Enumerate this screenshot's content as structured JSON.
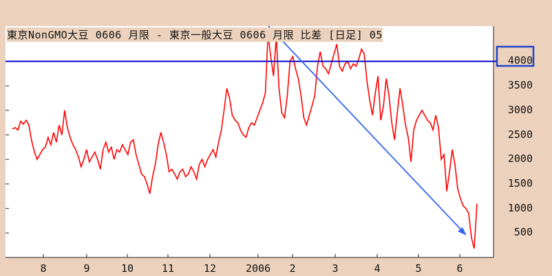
{
  "chart_data": {
    "type": "line",
    "title": "東京NonGMO大豆 0606 月限 - 東京一般大豆 0606 月限 比差 [日足] 05",
    "y_ticks": [
      "4000",
      "3500",
      "3000",
      "2500",
      "2000",
      "1500",
      "1000",
      "500"
    ],
    "y_tick_values": [
      4000,
      3500,
      3000,
      2500,
      2000,
      1500,
      1000,
      500
    ],
    "x_ticks": [
      "8",
      "9",
      "10",
      "11",
      "12",
      "2006",
      "2",
      "3",
      "4",
      "5",
      "6"
    ],
    "ylim": [
      0,
      4720
    ],
    "horizontal_line": 4000,
    "colors": {
      "series": "#ff0000",
      "reference_line": "#0000cc",
      "arrow": "#3366ee",
      "highlight_box": "#2244cc",
      "background": "#ecd2bd",
      "plot_bg": "#ffffff"
    },
    "series": [
      {
        "values": [
          2620,
          2650,
          2600,
          2780,
          2720,
          2800,
          2700,
          2380,
          2150,
          2000,
          2100,
          2200,
          2250,
          2450,
          2300,
          2550,
          2350,
          2700,
          2500,
          3000,
          2650,
          2450,
          2300,
          2200,
          2050,
          1850,
          2000,
          2200,
          1950,
          2050,
          2150,
          2000,
          1800,
          2200,
          2350,
          2150,
          2250,
          2000,
          2200,
          2150,
          2300,
          2200,
          2100,
          2350,
          2400,
          2100,
          1900,
          1700,
          1650,
          1500,
          1300,
          1650,
          1900,
          2300,
          2550,
          2350,
          2100,
          1750,
          1800,
          1700,
          1600,
          1750,
          1800,
          1650,
          1700,
          1850,
          1750,
          1600,
          1900,
          2000,
          1850,
          2000,
          2100,
          2200,
          2050,
          2350,
          2600,
          3000,
          3450,
          3250,
          2900,
          2800,
          2750,
          2600,
          2500,
          2450,
          2650,
          2750,
          2700,
          2850,
          3000,
          3150,
          3350,
          4550,
          4100,
          3700,
          4500,
          3450,
          2950,
          2850,
          3300,
          4000,
          4100,
          3850,
          3650,
          3300,
          2850,
          2700,
          2900,
          3100,
          3300,
          3900,
          4200,
          3900,
          3850,
          3750,
          3950,
          4150,
          4350,
          3900,
          3800,
          3950,
          4000,
          3850,
          3950,
          3900,
          4050,
          4250,
          4150,
          3600,
          3200,
          2900,
          3350,
          3700,
          2800,
          3100,
          3650,
          3300,
          2750,
          2400,
          2950,
          3450,
          3100,
          2700,
          2450,
          1950,
          2600,
          2800,
          2900,
          3000,
          2900,
          2800,
          2750,
          2600,
          2900,
          2650,
          2000,
          2100,
          1350,
          1750,
          2200,
          1900,
          1400,
          1200,
          1050,
          1000,
          900,
          400,
          180,
          1100
        ]
      }
    ]
  }
}
